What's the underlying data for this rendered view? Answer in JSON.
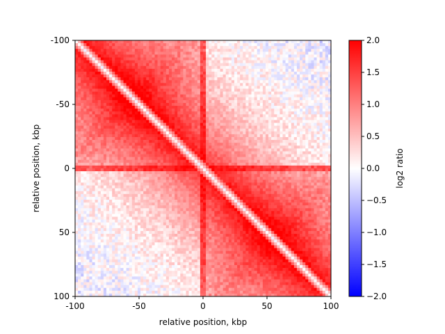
{
  "chart_data": {
    "type": "heatmap",
    "title": "",
    "xlabel": "relative position, kbp",
    "ylabel": "relative position, kbp",
    "x_range": [
      -100,
      100
    ],
    "y_range": [
      -100,
      100
    ],
    "y_axis_inverted": true,
    "grid_size": 90,
    "x_ticks": [
      "-100",
      "-50",
      "0",
      "50",
      "100"
    ],
    "y_ticks": [
      "-100",
      "-50",
      "0",
      "50",
      "100"
    ],
    "colorbar": {
      "label": "log2 ratio",
      "range": [
        -2.0,
        2.0
      ],
      "ticks": [
        "2.0",
        "1.5",
        "1.0",
        "0.5",
        "0.0",
        "−0.5",
        "−1.0",
        "−1.5",
        "−2.0"
      ],
      "colormap": [
        "#0000ff",
        "#ffffff",
        "#ff0000"
      ]
    },
    "pattern": {
      "diagonal_value": 0.0,
      "near_diagonal_peak": 1.6,
      "off_diagonal_far_value": -0.2,
      "same_side_domain_value": 1.2,
      "cross_axis_stripe_value": 2.0,
      "noise": 0.55
    }
  }
}
